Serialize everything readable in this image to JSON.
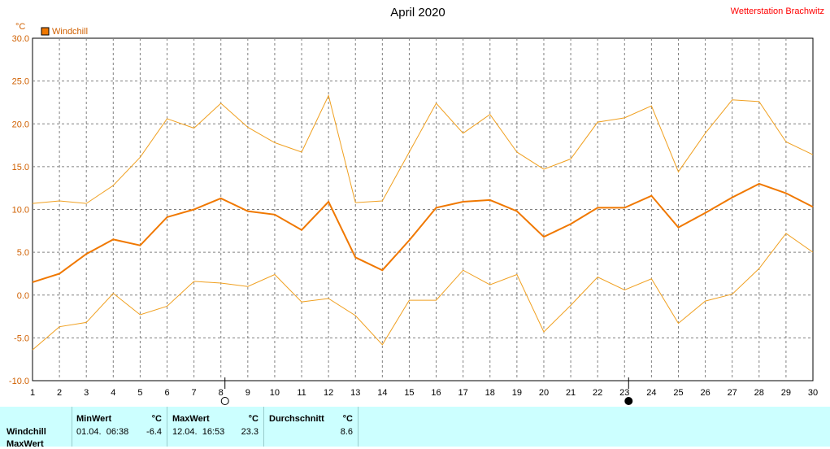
{
  "header": {
    "title": "April 2020",
    "station": "Wetterstation Brachwitz",
    "unit": "°C",
    "legend_label": "Windchill"
  },
  "colors": {
    "series_main": "#f07800",
    "series_minmax": "#f0a020",
    "axis_labels": "#d06000",
    "grid": "#808080",
    "stats_bg": "#ccffff"
  },
  "moon_phases": [
    {
      "day": 8,
      "phase": "full-moon-icon"
    },
    {
      "day": 23,
      "phase": "new-moon-icon"
    }
  ],
  "chart_data": {
    "type": "line",
    "title": "April 2020",
    "ylabel": "°C",
    "xlabel": "",
    "x": [
      1,
      2,
      3,
      4,
      5,
      6,
      7,
      8,
      9,
      10,
      11,
      12,
      13,
      14,
      15,
      16,
      17,
      18,
      19,
      20,
      21,
      22,
      23,
      24,
      25,
      26,
      27,
      28,
      29,
      30
    ],
    "xlim": [
      1,
      30
    ],
    "ylim": [
      -10,
      30
    ],
    "yticks": [
      "-10.0",
      "-5.0",
      "0.0",
      "5.0",
      "10.0",
      "15.0",
      "20.0",
      "25.0",
      "30.0"
    ],
    "grid": true,
    "legend_position": "top-left",
    "series": [
      {
        "name": "Windchill",
        "role": "mean",
        "values": [
          1.5,
          2.5,
          4.8,
          6.5,
          5.8,
          9.1,
          10.0,
          11.3,
          9.8,
          9.4,
          7.6,
          10.9,
          4.4,
          2.9,
          6.4,
          10.2,
          10.9,
          11.1,
          9.8,
          6.8,
          8.3,
          10.2,
          10.2,
          11.6,
          7.9,
          9.6,
          11.4,
          13.0,
          11.9,
          10.3
        ]
      },
      {
        "name": "",
        "role": "max",
        "values": [
          10.7,
          11.0,
          10.7,
          12.8,
          16.1,
          20.6,
          19.5,
          22.4,
          19.6,
          17.8,
          16.7,
          23.3,
          10.8,
          11.0,
          16.7,
          22.4,
          18.9,
          21.1,
          16.7,
          14.7,
          15.9,
          20.2,
          20.7,
          22.1,
          14.4,
          18.9,
          22.8,
          22.6,
          17.9,
          16.4
        ]
      },
      {
        "name": "",
        "role": "min",
        "values": [
          -6.4,
          -3.7,
          -3.2,
          0.2,
          -2.3,
          -1.3,
          1.6,
          1.4,
          1.0,
          2.4,
          -0.8,
          -0.4,
          -2.4,
          -5.8,
          -0.6,
          -0.6,
          2.9,
          1.2,
          2.4,
          -4.3,
          -1.2,
          2.1,
          0.6,
          1.9,
          -3.3,
          -0.7,
          0.1,
          3.1,
          7.2,
          5.0
        ]
      }
    ]
  },
  "stats": {
    "row_label": "Windchill",
    "row_label_next": "MaxWert",
    "min": {
      "header": "MinWert",
      "unit": "°C",
      "datetime": "01.04.  06:38",
      "value": "-6.4"
    },
    "max": {
      "header": "MaxWert",
      "unit": "°C",
      "datetime": "12.04.  16:53",
      "value": "23.3"
    },
    "avg": {
      "header": "Durchschnitt",
      "unit": "°C",
      "value": "8.6"
    }
  }
}
